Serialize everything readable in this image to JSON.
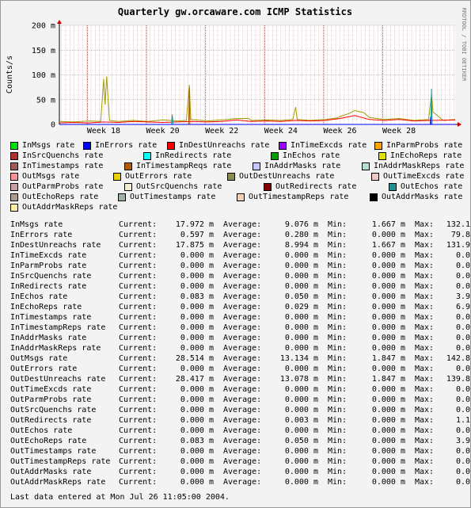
{
  "chart_data": {
    "type": "line",
    "title": "Quarterly gw.orcaware.com ICMP Statistics",
    "ylabel": "Counts/s",
    "side_label": "RRDTOOL / TOBI OETIKER",
    "y_ticks": [
      {
        "value": 0,
        "label": "0"
      },
      {
        "value": 50,
        "label": "50 m"
      },
      {
        "value": 100,
        "label": "100 m"
      },
      {
        "value": 150,
        "label": "150 m"
      },
      {
        "value": 200,
        "label": "200 m"
      }
    ],
    "ylim": [
      0,
      200
    ],
    "xlim": [
      16.5,
      29.9
    ],
    "x_ticks": [
      {
        "value": 18,
        "label": "Week 18"
      },
      {
        "value": 20,
        "label": "Week 20"
      },
      {
        "value": 22,
        "label": "Week 22"
      },
      {
        "value": 24,
        "label": "Week 24"
      },
      {
        "value": 26,
        "label": "Week 26"
      },
      {
        "value": 28,
        "label": "Week 28"
      }
    ],
    "grid": true,
    "series": [
      {
        "name": "OutMsgs rate",
        "color": "#9e9e00",
        "points": [
          [
            16.5,
            6
          ],
          [
            17.0,
            5
          ],
          [
            17.5,
            7
          ],
          [
            17.9,
            6
          ],
          [
            18.0,
            92
          ],
          [
            18.05,
            40
          ],
          [
            18.1,
            97
          ],
          [
            18.2,
            8
          ],
          [
            18.5,
            6
          ],
          [
            19.0,
            8
          ],
          [
            19.5,
            6
          ],
          [
            20.0,
            9
          ],
          [
            20.5,
            7
          ],
          [
            20.8,
            8
          ],
          [
            20.9,
            80
          ],
          [
            20.95,
            10
          ],
          [
            21.5,
            7
          ],
          [
            22.0,
            9
          ],
          [
            22.5,
            12
          ],
          [
            22.9,
            12
          ],
          [
            23.0,
            8
          ],
          [
            23.5,
            9
          ],
          [
            24.0,
            8
          ],
          [
            24.4,
            10
          ],
          [
            24.5,
            35
          ],
          [
            24.55,
            10
          ],
          [
            25.0,
            8
          ],
          [
            25.5,
            10
          ],
          [
            25.9,
            13
          ],
          [
            26.0,
            16
          ],
          [
            26.3,
            22
          ],
          [
            26.5,
            28
          ],
          [
            26.8,
            24
          ],
          [
            27.0,
            14
          ],
          [
            27.5,
            10
          ],
          [
            28.0,
            12
          ],
          [
            28.5,
            8
          ],
          [
            29.0,
            10
          ],
          [
            29.1,
            60
          ],
          [
            29.15,
            25
          ],
          [
            29.5,
            8
          ],
          [
            29.9,
            10
          ]
        ]
      },
      {
        "name": "InDestUnreachs rate",
        "color": "#ff0000",
        "points": [
          [
            16.5,
            3
          ],
          [
            17.0,
            4
          ],
          [
            17.5,
            3
          ],
          [
            18.0,
            5
          ],
          [
            18.5,
            4
          ],
          [
            19.0,
            6
          ],
          [
            19.5,
            5
          ],
          [
            20.0,
            4
          ],
          [
            20.5,
            5
          ],
          [
            21.0,
            6
          ],
          [
            21.5,
            5
          ],
          [
            22.0,
            6
          ],
          [
            22.5,
            9
          ],
          [
            23.0,
            6
          ],
          [
            23.5,
            7
          ],
          [
            24.0,
            6
          ],
          [
            24.5,
            8
          ],
          [
            25.0,
            7
          ],
          [
            25.5,
            8
          ],
          [
            26.0,
            12
          ],
          [
            26.5,
            18
          ],
          [
            27.0,
            10
          ],
          [
            27.5,
            8
          ],
          [
            28.0,
            10
          ],
          [
            28.5,
            7
          ],
          [
            29.0,
            8
          ],
          [
            29.9,
            9
          ]
        ]
      },
      {
        "name": "InTimestampReqs rate",
        "color": "#b45a00",
        "points": [
          [
            16.5,
            0
          ],
          [
            20.88,
            0
          ],
          [
            20.9,
            75
          ],
          [
            20.92,
            0
          ],
          [
            29.9,
            0
          ]
        ]
      },
      {
        "name": "InEchos rate",
        "color": "#00a000",
        "points": [
          [
            16.5,
            0
          ],
          [
            29.9,
            0
          ]
        ]
      },
      {
        "name": "InMsgs rate",
        "color": "#009e9e",
        "points": [
          [
            16.5,
            0
          ],
          [
            20.3,
            0
          ],
          [
            20.32,
            20
          ],
          [
            20.35,
            0
          ],
          [
            29.08,
            0
          ],
          [
            29.1,
            72
          ],
          [
            29.12,
            0
          ],
          [
            29.9,
            0
          ]
        ]
      },
      {
        "name": "InErrors rate",
        "color": "#0000ff",
        "points": [
          [
            16.5,
            0
          ],
          [
            29.06,
            0
          ],
          [
            29.07,
            15
          ],
          [
            29.08,
            0
          ],
          [
            29.9,
            0
          ]
        ]
      }
    ],
    "legend": [
      {
        "name": "InMsgs rate",
        "color": "#00e000"
      },
      {
        "name": "InErrors rate",
        "color": "#0000ff"
      },
      {
        "name": "InDestUnreachs rate",
        "color": "#ff0000"
      },
      {
        "name": "InTimeExcds rate",
        "color": "#9900ff"
      },
      {
        "name": "InParmProbs rate",
        "color": "#ffa500"
      },
      {
        "name": "InSrcQuenchs rate",
        "color": "#b03030"
      },
      {
        "name": "InRedirects rate",
        "color": "#00ffff"
      },
      {
        "name": "InEchos rate",
        "color": "#00a000"
      },
      {
        "name": "InEchoReps rate",
        "color": "#e0e000"
      },
      {
        "name": "InTimestamps rate",
        "color": "#a05a5a"
      },
      {
        "name": "InTimestampReqs rate",
        "color": "#b45a00"
      },
      {
        "name": "InAddrMasks rate",
        "color": "#c8c8ff"
      },
      {
        "name": "InAddrMaskReps rate",
        "color": "#b0e0d0"
      },
      {
        "name": "OutMsgs rate",
        "color": "#ff9090"
      },
      {
        "name": "OutErrors rate",
        "color": "#e6d000"
      },
      {
        "name": "OutDestUnreachs rate",
        "color": "#8c8c50"
      },
      {
        "name": "OutTimeExcds rate",
        "color": "#f0c8c8"
      },
      {
        "name": "OutParmProbs rate",
        "color": "#c8a0a0"
      },
      {
        "name": "OutSrcQuenchs rate",
        "color": "#f0f0d0"
      },
      {
        "name": "OutRedirects rate",
        "color": "#800000"
      },
      {
        "name": "OutEchos rate",
        "color": "#209090"
      },
      {
        "name": "OutEchoReps rate",
        "color": "#b09a8a"
      },
      {
        "name": "OutTimestamps rate",
        "color": "#a0b0a0"
      },
      {
        "name": "OutTimestampReps rate",
        "color": "#f0d0b8"
      },
      {
        "name": "OutAddrMasks rate",
        "color": "#000000"
      },
      {
        "name": "OutAddrMaskReps rate",
        "color": "#fff0a0"
      }
    ]
  },
  "stats": {
    "headers": {
      "current": "Current:",
      "average": "Average:",
      "min": "Min:",
      "max": "Max:"
    },
    "rows": [
      {
        "name": "InMsgs rate",
        "current": "17.972 m",
        "average": "9.076 m",
        "min": "1.667 m",
        "max": "132.1"
      },
      {
        "name": "InErrors rate",
        "current": "0.597 m",
        "average": "0.280 m",
        "min": "0.000 m",
        "max": "79.8"
      },
      {
        "name": "InDestUnreachs rate",
        "current": "17.875 m",
        "average": "8.994 m",
        "min": "1.667 m",
        "max": "131.9"
      },
      {
        "name": "InTimeExcds rate",
        "current": "0.000 m",
        "average": "0.000 m",
        "min": "0.000 m",
        "max": "0.0"
      },
      {
        "name": "InParmProbs rate",
        "current": "0.000 m",
        "average": "0.000 m",
        "min": "0.000 m",
        "max": "0.0"
      },
      {
        "name": "InSrcQuenchs rate",
        "current": "0.000 m",
        "average": "0.000 m",
        "min": "0.000 m",
        "max": "0.0"
      },
      {
        "name": "InRedirects rate",
        "current": "0.000 m",
        "average": "0.000 m",
        "min": "0.000 m",
        "max": "0.0"
      },
      {
        "name": "InEchos rate",
        "current": "0.083 m",
        "average": "0.050 m",
        "min": "0.000 m",
        "max": "3.9"
      },
      {
        "name": "InEchoReps rate",
        "current": "0.000 m",
        "average": "0.029 m",
        "min": "0.000 m",
        "max": "6.9"
      },
      {
        "name": "InTimestamps rate",
        "current": "0.000 m",
        "average": "0.000 m",
        "min": "0.000 m",
        "max": "0.0"
      },
      {
        "name": "InTimestampReps rate",
        "current": "0.000 m",
        "average": "0.000 m",
        "min": "0.000 m",
        "max": "0.0"
      },
      {
        "name": "InAddrMasks rate",
        "current": "0.000 m",
        "average": "0.000 m",
        "min": "0.000 m",
        "max": "0.0"
      },
      {
        "name": "InAddrMaskReps rate",
        "current": "0.000 m",
        "average": "0.000 m",
        "min": "0.000 m",
        "max": "0.0"
      },
      {
        "name": "OutMsgs rate",
        "current": "28.514 m",
        "average": "13.134 m",
        "min": "1.847 m",
        "max": "142.8"
      },
      {
        "name": "OutErrors rate",
        "current": "0.000 m",
        "average": "0.000 m",
        "min": "0.000 m",
        "max": "0.0"
      },
      {
        "name": "OutDestUnreachs rate",
        "current": "28.417 m",
        "average": "13.078 m",
        "min": "1.847 m",
        "max": "139.8"
      },
      {
        "name": "OutTimeExcds rate",
        "current": "0.000 m",
        "average": "0.000 m",
        "min": "0.000 m",
        "max": "0.0"
      },
      {
        "name": "OutParmProbs rate",
        "current": "0.000 m",
        "average": "0.000 m",
        "min": "0.000 m",
        "max": "0.0"
      },
      {
        "name": "OutSrcQuenchs rate",
        "current": "0.000 m",
        "average": "0.000 m",
        "min": "0.000 m",
        "max": "0.0"
      },
      {
        "name": "OutRedirects rate",
        "current": "0.000 m",
        "average": "0.003 m",
        "min": "0.000 m",
        "max": "1.1"
      },
      {
        "name": "OutEchos rate",
        "current": "0.000 m",
        "average": "0.000 m",
        "min": "0.000 m",
        "max": "0.0"
      },
      {
        "name": "OutEchoReps rate",
        "current": "0.083 m",
        "average": "0.050 m",
        "min": "0.000 m",
        "max": "3.9"
      },
      {
        "name": "OutTimestamps rate",
        "current": "0.000 m",
        "average": "0.000 m",
        "min": "0.000 m",
        "max": "0.0"
      },
      {
        "name": "OutTimestampReps rate",
        "current": "0.000 m",
        "average": "0.000 m",
        "min": "0.000 m",
        "max": "0.0"
      },
      {
        "name": "OutAddrMasks rate",
        "current": "0.000 m",
        "average": "0.000 m",
        "min": "0.000 m",
        "max": "0.0"
      },
      {
        "name": "OutAddrMaskReps rate",
        "current": "0.000 m",
        "average": "0.000 m",
        "min": "0.000 m",
        "max": "0.0"
      }
    ]
  },
  "footer": "Last data entered at Mon Jul 26 11:05:00 2004."
}
